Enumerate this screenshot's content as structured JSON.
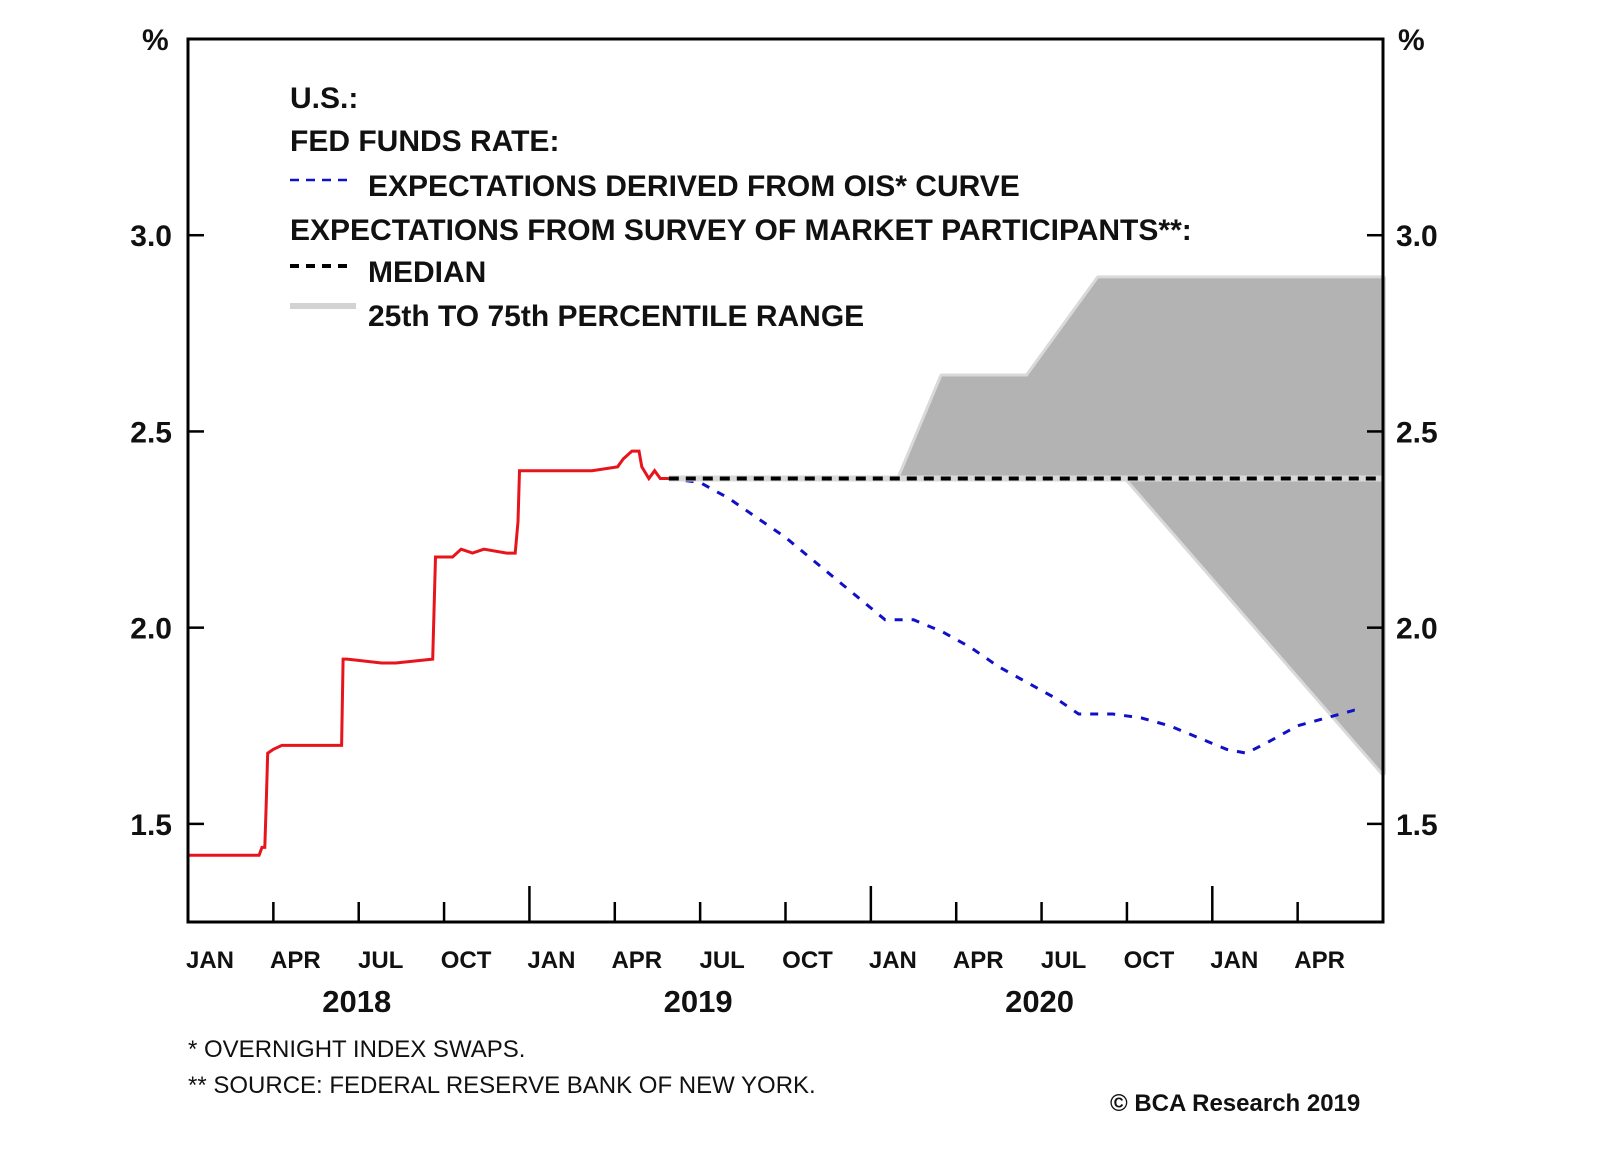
{
  "chart_data": {
    "type": "line",
    "title": "U.S.:",
    "subtitle": "FED FUNDS RATE:",
    "ylabel_left": "%",
    "ylabel_right": "%",
    "ylim": [
      1.25,
      3.5
    ],
    "yticks": [
      1.5,
      2.0,
      2.5,
      3.0
    ],
    "ytick_labels": [
      "1.5",
      "2.0",
      "2.5",
      "3.0"
    ],
    "x_range": [
      "2018-01",
      "2021-07"
    ],
    "xticks": [
      {
        "label": "JAN",
        "month": 0,
        "major": true
      },
      {
        "label": "APR",
        "month": 3
      },
      {
        "label": "JUL",
        "month": 6
      },
      {
        "label": "OCT",
        "month": 9
      },
      {
        "label": "JAN",
        "month": 12,
        "major": true
      },
      {
        "label": "APR",
        "month": 15
      },
      {
        "label": "JUL",
        "month": 18
      },
      {
        "label": "OCT",
        "month": 21
      },
      {
        "label": "JAN",
        "month": 24,
        "major": true
      },
      {
        "label": "APR",
        "month": 27
      },
      {
        "label": "JUL",
        "month": 30
      },
      {
        "label": "OCT",
        "month": 33
      },
      {
        "label": "JAN",
        "month": 36,
        "major": true
      },
      {
        "label": "APR",
        "month": 39
      }
    ],
    "years": [
      {
        "label": "2018",
        "center_month": 6
      },
      {
        "label": "2019",
        "center_month": 18
      },
      {
        "label": "2020",
        "center_month": 30
      }
    ],
    "grid": false,
    "legend": {
      "position": "top-left",
      "header": "U.S.:",
      "group1_title": "FED FUNDS RATE:",
      "ois_label": "EXPECTATIONS DERIVED FROM OIS* CURVE",
      "group2_title": "EXPECTATIONS FROM SURVEY OF MARKET PARTICIPANTS**:",
      "median_label": "MEDIAN",
      "range_label": "25th TO 75th PERCENTILE RANGE"
    },
    "series": [
      {
        "name": "Fed funds rate (effective)",
        "style": "solid",
        "color": "#e8141b",
        "points": [
          [
            0,
            1.42
          ],
          [
            2.5,
            1.42
          ],
          [
            2.6,
            1.44
          ],
          [
            2.7,
            1.44
          ],
          [
            2.75,
            1.55
          ],
          [
            2.8,
            1.68
          ],
          [
            3.0,
            1.69
          ],
          [
            3.3,
            1.7
          ],
          [
            5.4,
            1.7
          ],
          [
            5.45,
            1.92
          ],
          [
            5.6,
            1.92
          ],
          [
            6.8,
            1.91
          ],
          [
            7.3,
            1.91
          ],
          [
            8.6,
            1.92
          ],
          [
            8.7,
            2.18
          ],
          [
            9.3,
            2.18
          ],
          [
            9.6,
            2.2
          ],
          [
            10.0,
            2.19
          ],
          [
            10.4,
            2.2
          ],
          [
            11.2,
            2.19
          ],
          [
            11.5,
            2.19
          ],
          [
            11.6,
            2.27
          ],
          [
            11.65,
            2.4
          ],
          [
            14.2,
            2.4
          ],
          [
            15.1,
            2.41
          ],
          [
            15.3,
            2.43
          ],
          [
            15.6,
            2.45
          ],
          [
            15.85,
            2.45
          ],
          [
            15.95,
            2.41
          ],
          [
            16.2,
            2.38
          ],
          [
            16.4,
            2.4
          ],
          [
            16.6,
            2.38
          ],
          [
            16.9,
            2.38
          ]
        ]
      },
      {
        "name": "Expectations derived from OIS* curve",
        "style": "dashed",
        "color": "#1010c8",
        "points": [
          [
            16.9,
            2.38
          ],
          [
            18.0,
            2.37
          ],
          [
            19.0,
            2.33
          ],
          [
            20.0,
            2.28
          ],
          [
            21.0,
            2.23
          ],
          [
            22.0,
            2.17
          ],
          [
            23.0,
            2.11
          ],
          [
            24.0,
            2.05
          ],
          [
            24.5,
            2.02
          ],
          [
            25.5,
            2.02
          ],
          [
            26.5,
            1.99
          ],
          [
            27.5,
            1.95
          ],
          [
            28.5,
            1.9
          ],
          [
            29.5,
            1.86
          ],
          [
            30.5,
            1.82
          ],
          [
            31.3,
            1.78
          ],
          [
            32.5,
            1.78
          ],
          [
            33.5,
            1.77
          ],
          [
            34.5,
            1.75
          ],
          [
            35.5,
            1.72
          ],
          [
            36.5,
            1.69
          ],
          [
            37.2,
            1.68
          ],
          [
            38.0,
            1.71
          ],
          [
            39.0,
            1.75
          ],
          [
            40.0,
            1.77
          ],
          [
            41.0,
            1.79
          ],
          [
            41.3,
            1.79
          ]
        ]
      },
      {
        "name": "Survey median",
        "style": "dotted",
        "color": "#000000",
        "points": [
          [
            16.9,
            2.38
          ],
          [
            42.0,
            2.38
          ]
        ]
      },
      {
        "name": "Survey 25th to 75th percentile range",
        "style": "band",
        "color": "#b3b3b3",
        "edge_color": "#d9d9d9",
        "upper": [
          [
            25.0,
            2.38
          ],
          [
            26.5,
            2.64
          ],
          [
            29.5,
            2.64
          ],
          [
            32.0,
            2.89
          ],
          [
            42.0,
            2.89
          ]
        ],
        "lower": [
          [
            25.0,
            2.38
          ],
          [
            33.0,
            2.38
          ],
          [
            42.0,
            1.63
          ]
        ]
      }
    ],
    "footnotes": [
      "*  OVERNIGHT INDEX SWAPS.",
      "** SOURCE: FEDERAL RESERVE BANK OF NEW YORK."
    ],
    "credit": "© BCA Research 2019"
  }
}
